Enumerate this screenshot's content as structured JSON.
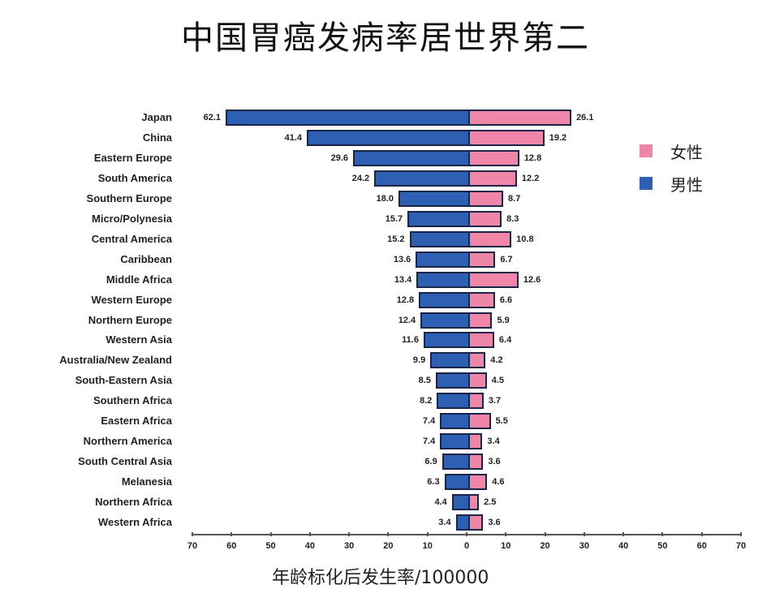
{
  "title": "中国胃癌发病率居世界第二",
  "legend": [
    {
      "label": "女性",
      "color": "#ef86a8"
    },
    {
      "label": "男性",
      "color": "#2d5fb3"
    }
  ],
  "xlabel": "年龄标化后发生率/100000",
  "chart_data": {
    "type": "bar",
    "orientation": "horizontal-butterfly",
    "title": "中国胃癌发病率居世界第二",
    "xlabel": "年龄标化后发生率/100000",
    "ylabel": "",
    "xlim": [
      -70,
      70
    ],
    "x_ticks": [
      "70",
      "60",
      "50",
      "40",
      "30",
      "20",
      "10",
      "0",
      "10",
      "20",
      "30",
      "40",
      "50",
      "60",
      "70"
    ],
    "legend_position": "upper right",
    "grid": false,
    "categories": [
      "Japan",
      "China",
      "Eastern Europe",
      "South America",
      "Southern Europe",
      "Micro/Polynesia",
      "Central America",
      "Caribbean",
      "Middle Africa",
      "Western Europe",
      "Northern Europe",
      "Western Asia",
      "Australia/New Zealand",
      "South-Eastern Asia",
      "Southern Africa",
      "Eastern Africa",
      "Northern America",
      "South Central Asia",
      "Melanesia",
      "Northern Africa",
      "Western Africa"
    ],
    "series": [
      {
        "name": "男性",
        "side": "left",
        "color": "#2d5fb3",
        "values": [
          62.1,
          41.4,
          29.6,
          24.2,
          18.0,
          15.7,
          15.2,
          13.6,
          13.4,
          12.8,
          12.4,
          11.6,
          9.9,
          8.5,
          8.2,
          7.4,
          7.4,
          6.9,
          6.3,
          4.4,
          3.4
        ]
      },
      {
        "name": "女性",
        "side": "right",
        "color": "#ef86a8",
        "values": [
          26.1,
          19.2,
          12.8,
          12.2,
          8.7,
          8.3,
          10.8,
          6.7,
          12.6,
          6.6,
          5.9,
          6.4,
          4.2,
          4.5,
          3.7,
          5.5,
          3.4,
          3.6,
          4.6,
          2.5,
          3.6
        ]
      }
    ],
    "male_labels": [
      "62.1",
      "41.4",
      "29.6",
      "24.2",
      "18.0",
      "15.7",
      "15.2",
      "13.6",
      "13.4",
      "12.8",
      "12.4",
      "11.6",
      "9.9",
      "8.5",
      "8.2",
      "7.4",
      "7.4",
      "6.9",
      "6.3",
      "4.4",
      "3.4"
    ],
    "female_labels": [
      "26.1",
      "19.2",
      "12.8",
      "12.2",
      "8.7",
      "8.3",
      "10.8",
      "6.7",
      "12.6",
      "6.6",
      "5.9",
      "6.4",
      "4.2",
      "4.5",
      "3.7",
      "5.5",
      "3.4",
      "3.6",
      "4.6",
      "2.5",
      "3.6"
    ]
  }
}
